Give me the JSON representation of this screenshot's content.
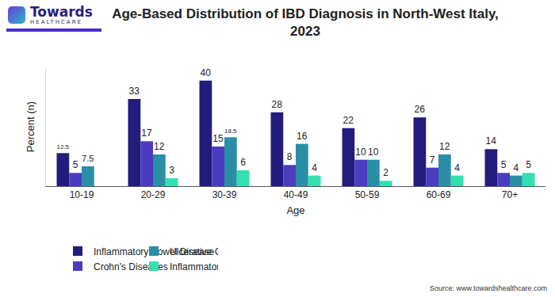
{
  "chart_data": {
    "type": "bar",
    "title": "Age-Based Distribution of IBD Diagnosis in North-West Italy, 2023",
    "x_label": "Age",
    "y_label": "Percent (n)",
    "source": "Source: www.towardshealthcare.com",
    "logo": [
      "Towards",
      "HEALTHCARE"
    ],
    "categories": [
      "10-19",
      "20-29",
      "30-39",
      "40-49",
      "50-59",
      "60-69",
      "70+"
    ],
    "series": [
      {
        "name": "Inflammatory Bowel Disease",
        "color": "#231c7c",
        "values": [
          12.5,
          33,
          40,
          28,
          22,
          26,
          14
        ]
      },
      {
        "name": "Crohn's Diseases",
        "color": "#4b3cc0",
        "values": [
          5,
          17,
          15,
          8,
          10,
          7,
          5
        ]
      },
      {
        "name": "Ulcerative Colitis",
        "color": "#2a8fa6",
        "values": [
          7.5,
          12,
          18.5,
          16,
          10,
          12,
          4
        ]
      },
      {
        "name": "Inflammatory Bowel Disease Unclassified",
        "color": "#34e0b2",
        "values": [
          null,
          3,
          6,
          4,
          2,
          4,
          5
        ]
      }
    ],
    "ylim": [
      0,
      45
    ],
    "tick_labels": "x",
    "grid": false,
    "legend": "bottom",
    "data_labels": true
  }
}
